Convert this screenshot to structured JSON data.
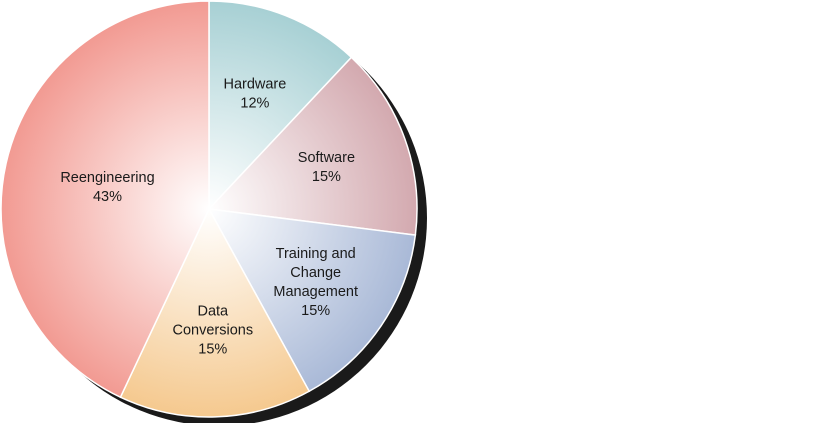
{
  "chart_data": {
    "type": "pie",
    "title": "",
    "slices": [
      {
        "label": [
          "Hardware"
        ],
        "value": 12,
        "value_label": "12%",
        "color": "#a7d0d4"
      },
      {
        "label": [
          "Software"
        ],
        "value": 15,
        "value_label": "15%",
        "color": "#d3a9af"
      },
      {
        "label": [
          "Training and",
          "Change",
          "Management"
        ],
        "value": 15,
        "value_label": "15%",
        "color": "#a9b9d7"
      },
      {
        "label": [
          "Data",
          "Conversions"
        ],
        "value": 15,
        "value_label": "15%",
        "color": "#f5c98f"
      },
      {
        "label": [
          "Reengineering"
        ],
        "value": 43,
        "value_label": "43%",
        "color": "#f29a92"
      }
    ],
    "start_angle_deg": 0,
    "direction": "clockwise",
    "legend": "none",
    "shadow_color": "#1a1a1a"
  }
}
